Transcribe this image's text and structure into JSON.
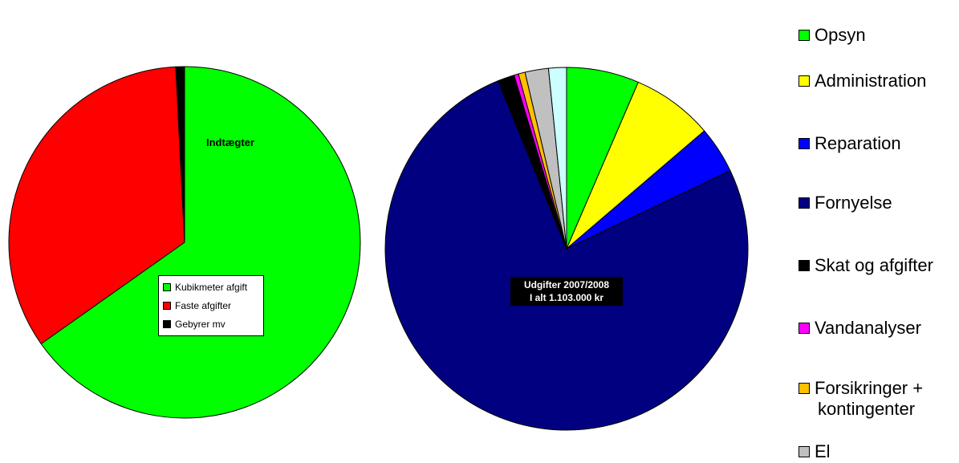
{
  "chart_data": [
    {
      "type": "pie",
      "title": "Indtægter",
      "legend_position": "inside-bottom",
      "slices": [
        {
          "label": "Kubikmeter afgift",
          "value": 65.2,
          "color": "#00ff00"
        },
        {
          "label": "Faste afgifter",
          "value": 34.0,
          "color": "#ff0000"
        },
        {
          "label": "Gebyrer mv",
          "value": 0.8,
          "color": "#000000"
        }
      ]
    },
    {
      "type": "pie",
      "title_lines": [
        "Udgifter 2007/2008",
        "I alt 1.103.000 kr"
      ],
      "legend_position": "right",
      "slices": [
        {
          "label": "Opsyn",
          "value": 6.5,
          "color": "#00ff00"
        },
        {
          "label": "Administration",
          "value": 7.3,
          "color": "#ffff00"
        },
        {
          "label": "Reparation",
          "value": 4.2,
          "color": "#0000ff"
        },
        {
          "label": "Fornyelse",
          "value": 76.3,
          "color": "#000080"
        },
        {
          "label": "Skat og afgifter",
          "value": 1.5,
          "color": "#000000"
        },
        {
          "label": "Vandanalyser",
          "value": 0.4,
          "color": "#ff00ff"
        },
        {
          "label": "Forsikringer + kontingenter",
          "value": 0.6,
          "color": "#ffc000"
        },
        {
          "label": "El",
          "value": 2.1,
          "color": "#c0c0c0"
        },
        {
          "label": "",
          "value": 1.6,
          "color": "#ccffff"
        }
      ]
    }
  ],
  "legend_right_items": [
    {
      "line1": "Opsyn",
      "line2": ""
    },
    {
      "line1": "Administration",
      "line2": ""
    },
    {
      "line1": "Reparation",
      "line2": ""
    },
    {
      "line1": "Fornyelse",
      "line2": ""
    },
    {
      "line1": "Skat og afgifter",
      "line2": ""
    },
    {
      "line1": "Vandanalyser",
      "line2": ""
    },
    {
      "line1": "Forsikringer +",
      "line2": "kontingenter"
    },
    {
      "line1": "El",
      "line2": ""
    }
  ]
}
